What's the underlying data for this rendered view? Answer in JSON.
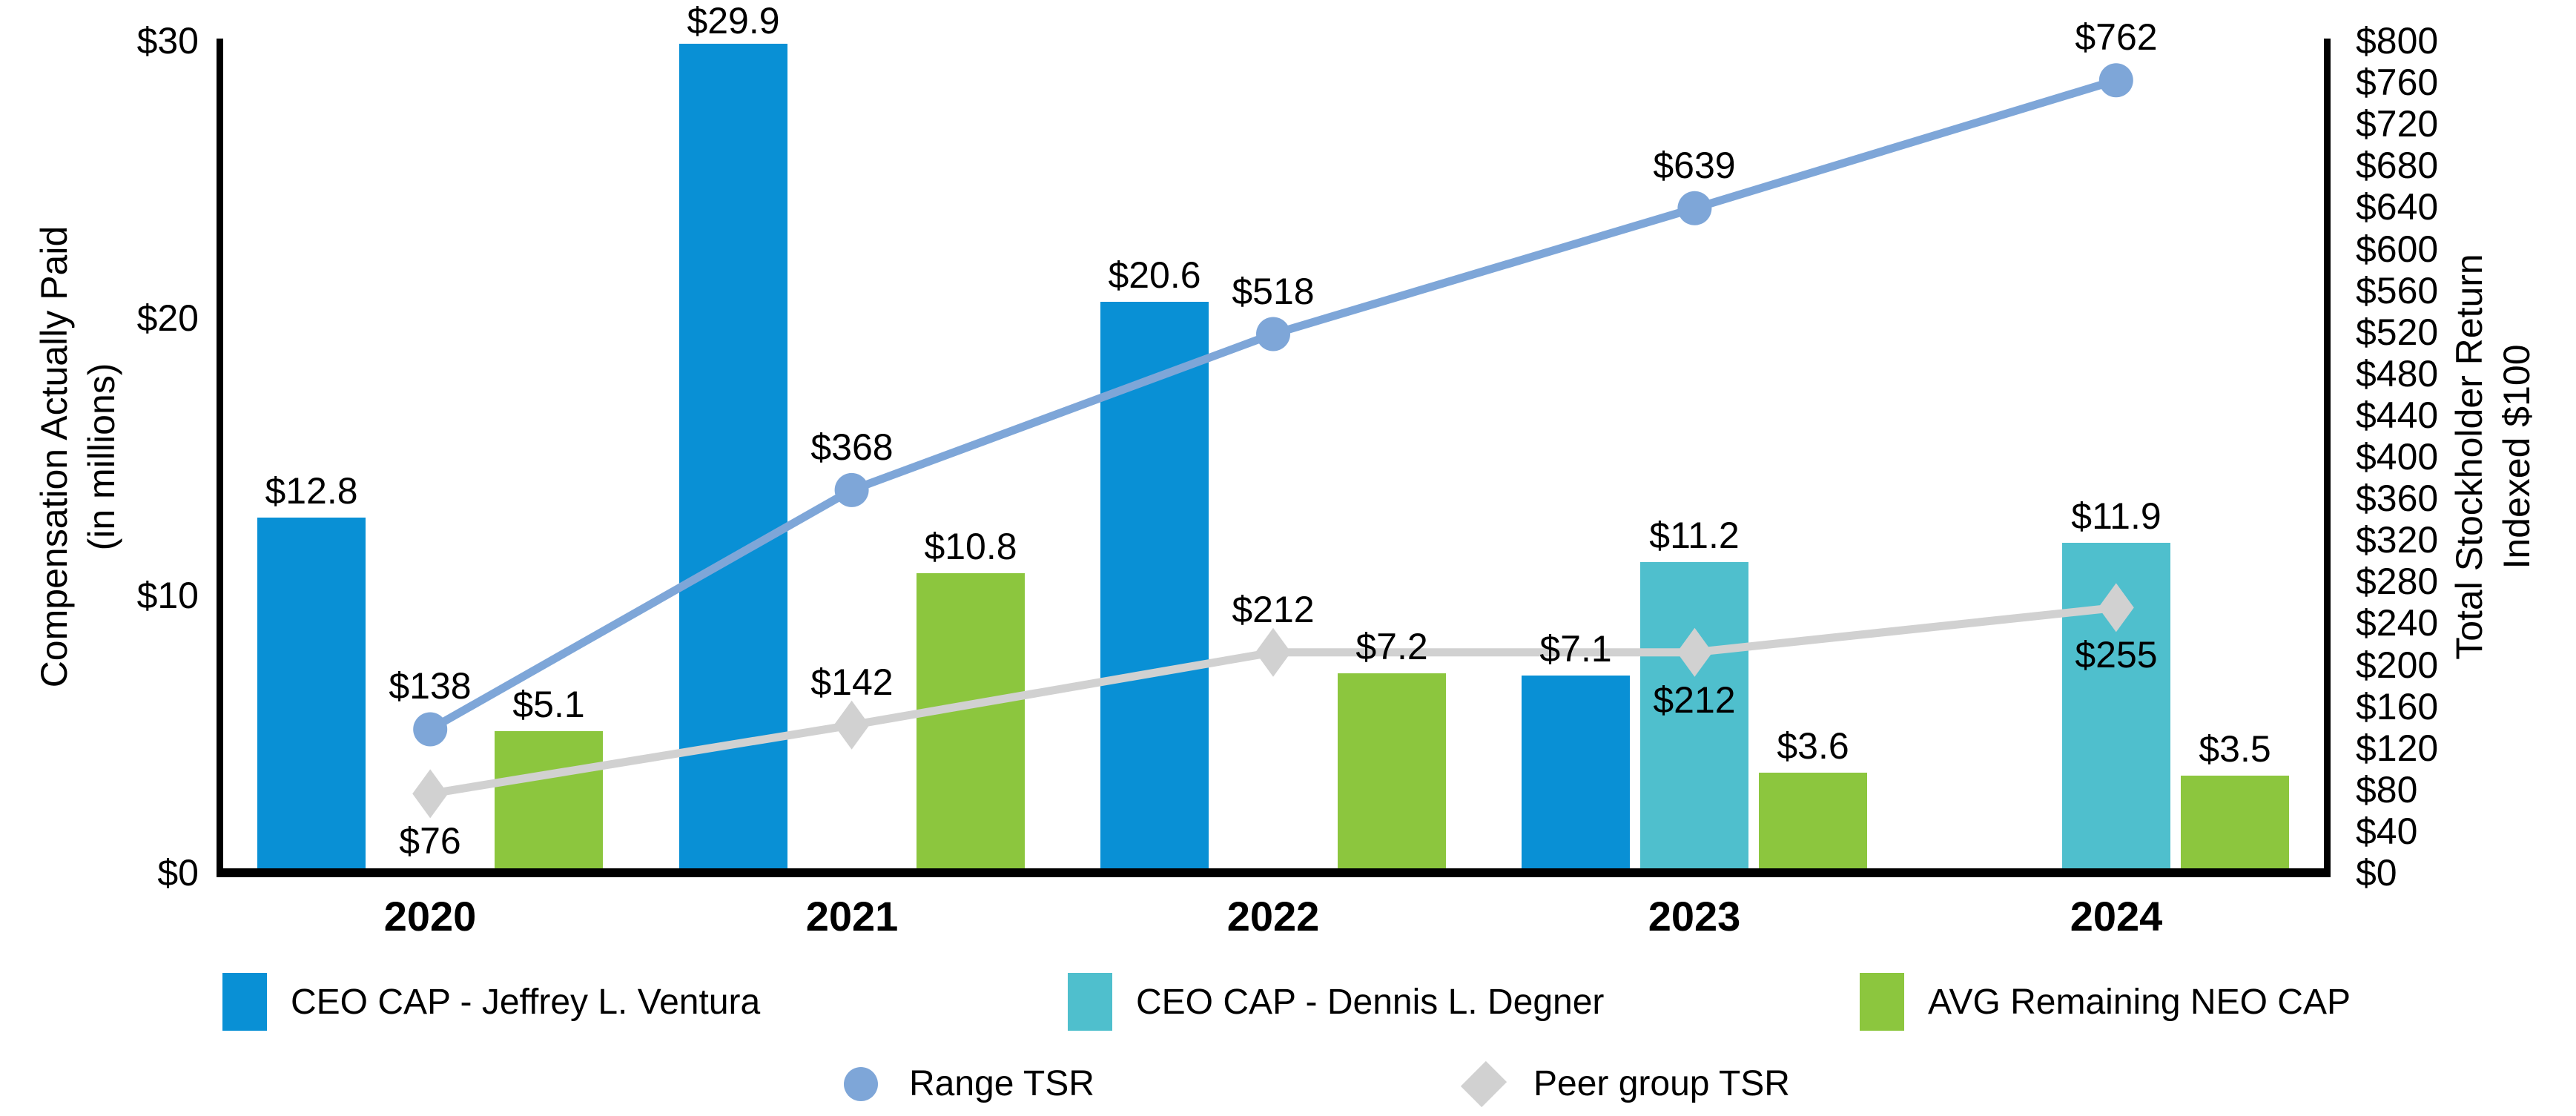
{
  "chart_data": {
    "type": "combo_bar_line",
    "title": "",
    "categories": [
      "2020",
      "2021",
      "2022",
      "2023",
      "2024"
    ],
    "left_axis": {
      "title_line1": "Compensation Actually Paid",
      "title_line2": "(in millions)",
      "min": 0,
      "max": 30,
      "tick_labels": [
        "$0",
        "$10",
        "$20",
        "$30"
      ]
    },
    "right_axis": {
      "title_line1": "Total Stockholder Return",
      "title_line2": "Indexed $100",
      "min": 0,
      "max": 800,
      "tick_labels": [
        "$0",
        "$40",
        "$80",
        "$120",
        "$160",
        "$200",
        "$240",
        "$280",
        "$320",
        "$360",
        "$400",
        "$440",
        "$480",
        "$520",
        "$560",
        "$600",
        "$640",
        "$680",
        "$720",
        "$760",
        "$800"
      ]
    },
    "grid": "off",
    "bar_series": [
      {
        "name": "CEO CAP - Jeffrey L. Ventura",
        "color": "#0990D5",
        "slot": 0,
        "values": [
          12.8,
          29.9,
          20.6,
          7.1,
          null
        ],
        "labels": [
          "$12.8",
          "$29.9",
          "$20.6",
          "$7.1",
          null
        ]
      },
      {
        "name": "CEO CAP - Dennis L. Degner",
        "color": "#4FBFCD",
        "slot": 1,
        "values": [
          null,
          null,
          null,
          11.2,
          11.9
        ],
        "labels": [
          null,
          null,
          null,
          "$11.2",
          "$11.9"
        ]
      },
      {
        "name": "AVG Remaining NEO CAP",
        "color": "#8CC63E",
        "slot": 2,
        "values": [
          5.1,
          10.8,
          7.2,
          3.6,
          3.5
        ],
        "labels": [
          "$5.1",
          "$10.8",
          "$7.2",
          "$3.6",
          "$3.5"
        ]
      }
    ],
    "line_series": [
      {
        "name": "Range TSR",
        "color": "#7EA6D8",
        "marker": "circle",
        "values": [
          138,
          368,
          518,
          639,
          762
        ],
        "labels": [
          "$138",
          "$368",
          "$518",
          "$639",
          "$762"
        ],
        "label_positions": [
          "above",
          "above",
          "above",
          "above",
          "above"
        ]
      },
      {
        "name": "Peer group TSR",
        "color": "#D1D1D1",
        "marker": "diamond",
        "values": [
          76,
          142,
          212,
          212,
          255
        ],
        "labels": [
          "$76",
          "$142",
          "$212",
          "$212",
          "$255"
        ],
        "label_positions": [
          "below",
          "above",
          "above",
          "below",
          "below"
        ]
      }
    ]
  }
}
